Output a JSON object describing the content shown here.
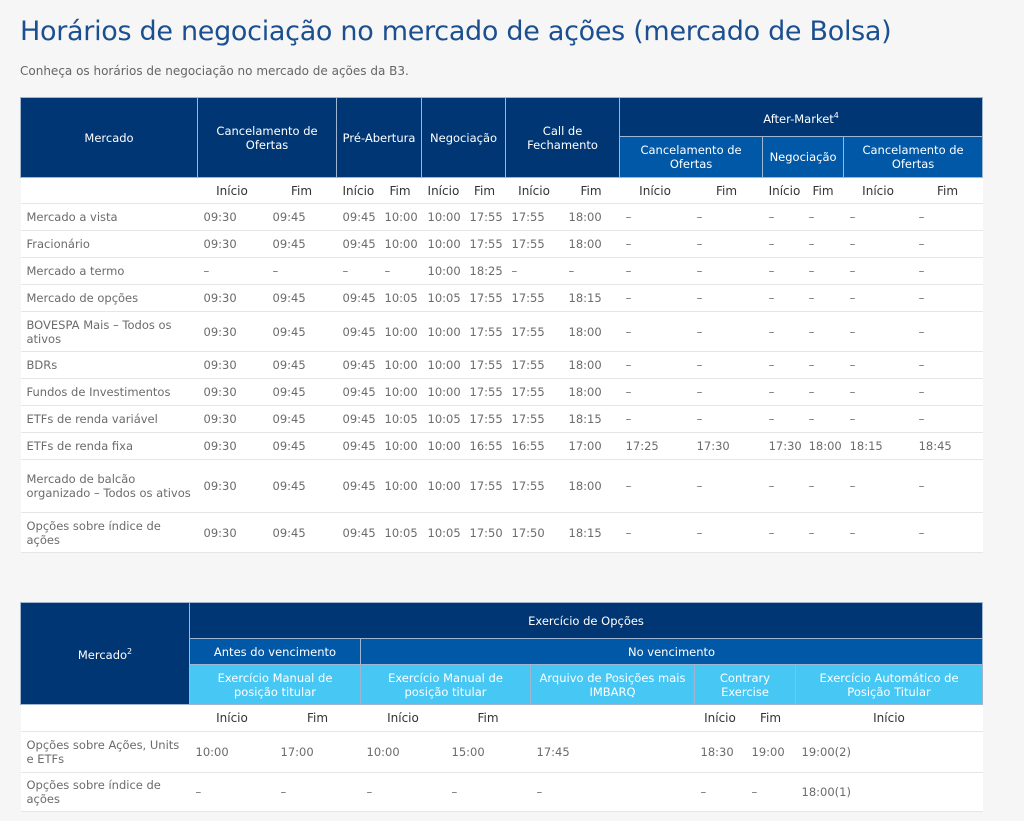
{
  "title": "Horários de negociação no mercado de ações (mercado de Bolsa)",
  "subtitle": "Conheça os horários de negociação no mercado de ações da B3.",
  "colors": {
    "header_dark": "#003674",
    "header_mid": "#0058a6",
    "header_light": "#46c7f4",
    "title": "#1b4f8f"
  },
  "table1": {
    "h_mercado": "Mercado",
    "h_cancel": "Cancelamento de Ofertas",
    "h_pre": "Pré-Abertura",
    "h_neg": "Negociação",
    "h_call": "Call de Fechamento",
    "h_after": "After-Market",
    "h_after_sup": "4",
    "h_am_cancel": "Cancelamento de Ofertas",
    "h_am_neg": "Negociação",
    "h_am_cancel2": "Cancelamento de Ofertas",
    "inicio": "Início",
    "fim": "Fim",
    "rows": [
      [
        "Mercado a vista",
        "09:30",
        "09:45",
        "09:45",
        "10:00",
        "10:00",
        "17:55",
        "17:55",
        "18:00",
        "–",
        "–",
        "–",
        "–",
        "–",
        "–"
      ],
      [
        "Fracionário",
        "09:30",
        "09:45",
        "09:45",
        "10:00",
        "10:00",
        "17:55",
        "17:55",
        "18:00",
        "–",
        "–",
        "–",
        "–",
        "–",
        "–"
      ],
      [
        "Mercado a termo",
        "–",
        "–",
        "–",
        "–",
        "10:00",
        "18:25",
        "–",
        "–",
        "–",
        "–",
        "–",
        "–",
        "–",
        "–"
      ],
      [
        "Mercado de opções",
        "09:30",
        "09:45",
        "09:45",
        "10:05",
        "10:05",
        "17:55",
        "17:55",
        "18:15",
        "–",
        "–",
        "–",
        "–",
        "–",
        "–"
      ],
      [
        "BOVESPA Mais – Todos os ativos",
        "09:30",
        "09:45",
        "09:45",
        "10:00",
        "10:00",
        "17:55",
        "17:55",
        "18:00",
        "–",
        "–",
        "–",
        "–",
        "–",
        "–"
      ],
      [
        "BDRs",
        "09:30",
        "09:45",
        "09:45",
        "10:00",
        "10:00",
        "17:55",
        "17:55",
        "18:00",
        "–",
        "–",
        "–",
        "–",
        "–",
        "–"
      ],
      [
        "Fundos de Investimentos",
        "09:30",
        "09:45",
        "09:45",
        "10:00",
        "10:00",
        "17:55",
        "17:55",
        "18:00",
        "–",
        "–",
        "–",
        "–",
        "–",
        "–"
      ],
      [
        "ETFs de renda variável",
        "09:30",
        "09:45",
        "09:45",
        "10:05",
        "10:05",
        "17:55",
        "17:55",
        "18:15",
        "–",
        "–",
        "–",
        "–",
        "–",
        "–"
      ],
      [
        "ETFs de renda fixa",
        "09:30",
        "09:45",
        "09:45",
        "10:00",
        "10:00",
        "16:55",
        "16:55",
        "17:00",
        "17:25",
        "17:30",
        "17:30",
        "18:00",
        "18:15",
        "18:45"
      ],
      [
        "Mercado de balcão organizado – Todos os ativos",
        "09:30",
        "09:45",
        "09:45",
        "10:00",
        "10:00",
        "17:55",
        "17:55",
        "18:00",
        "–",
        "–",
        "–",
        "–",
        "–",
        "–"
      ],
      [
        "Opções sobre índice de ações",
        "09:30",
        "09:45",
        "09:45",
        "10:05",
        "10:05",
        "17:50",
        "17:50",
        "18:15",
        "–",
        "–",
        "–",
        "–",
        "–",
        "–"
      ]
    ]
  },
  "table2": {
    "h_mercado": "Mercado",
    "h_mercado_sup": "2",
    "h_exercicio": "Exercício de Opções",
    "h_antes": "Antes do vencimento",
    "h_no": "No vencimento",
    "h_em1": "Exercício Manual de posição titular",
    "h_em2": "Exercício Manual de posição titular",
    "h_arq": "Arquivo de Posições mais IMBARQ",
    "h_contrary": "Contrary Exercise",
    "h_auto": "Exercício Automático de Posição Titular",
    "sub": [
      "Início",
      "Fim",
      "Início",
      "Fim",
      "",
      "Início",
      "Fim",
      "Início"
    ],
    "rows": [
      [
        "Opções sobre Ações, Units e ETFs",
        "10:00",
        "17:00",
        "10:00",
        "15:00",
        "17:45",
        "18:30",
        "19:00",
        "19:00(2)"
      ],
      [
        "Opções sobre índice de ações",
        "–",
        "–",
        "–",
        "–",
        "–",
        "–",
        "–",
        "18:00(1)"
      ]
    ]
  }
}
